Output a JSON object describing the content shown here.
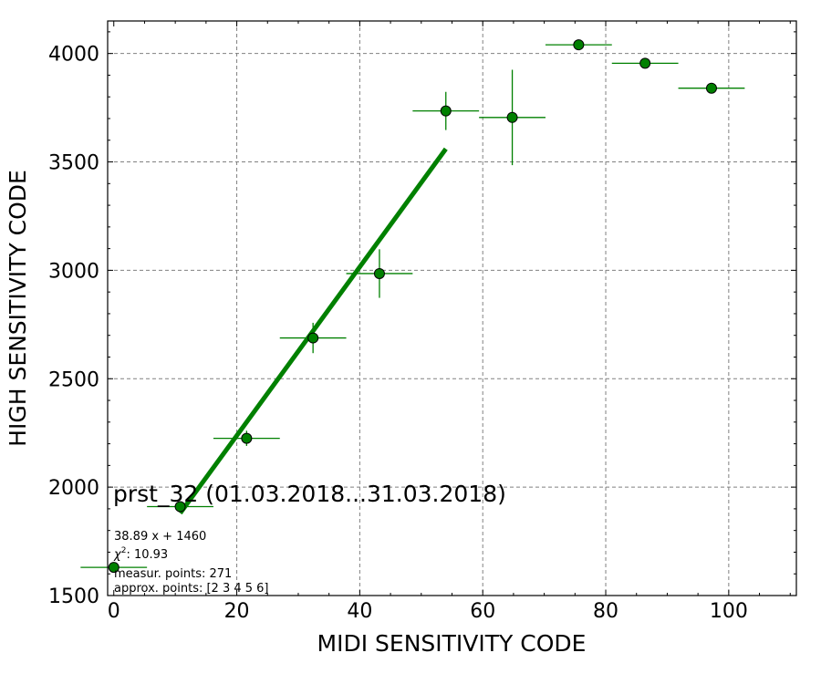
{
  "chart_data": {
    "type": "scatter",
    "title": "",
    "xlabel": "MIDI SENSITIVITY CODE",
    "ylabel": "HIGH SENSITIVITY CODE",
    "xlim": [
      -1,
      111
    ],
    "ylim": [
      1500,
      4150
    ],
    "grid": true,
    "xticks": [
      0,
      20,
      40,
      60,
      80,
      100
    ],
    "yticks": [
      1500,
      2000,
      2500,
      3000,
      3500,
      4000
    ],
    "xtick_labels": [
      "0",
      "20",
      "40",
      "60",
      "80",
      "100"
    ],
    "ytick_labels": [
      "1500",
      "2000",
      "2500",
      "3000",
      "3500",
      "4000"
    ],
    "point_color": "#008000",
    "fit_color": "#008000",
    "points": [
      {
        "x": 0.0,
        "y": 1630,
        "xerr": 5.4,
        "yerr": 8
      },
      {
        "x": 10.8,
        "y": 1910,
        "xerr": 5.4,
        "yerr": 18
      },
      {
        "x": 21.6,
        "y": 2225,
        "xerr": 5.4,
        "yerr": 35
      },
      {
        "x": 32.4,
        "y": 2688,
        "xerr": 5.4,
        "yerr": 70
      },
      {
        "x": 43.2,
        "y": 2985,
        "xerr": 5.4,
        "yerr": 112
      },
      {
        "x": 54.0,
        "y": 3735,
        "xerr": 5.4,
        "yerr": 88
      },
      {
        "x": 64.8,
        "y": 3705,
        "xerr": 5.4,
        "yerr": 220
      },
      {
        "x": 75.6,
        "y": 4040,
        "xerr": 5.4,
        "yerr": 0
      },
      {
        "x": 86.4,
        "y": 3955,
        "xerr": 5.4,
        "yerr": 0
      },
      {
        "x": 97.2,
        "y": 3840,
        "xerr": 5.4,
        "yerr": 0
      }
    ],
    "fit": {
      "slope": 38.89,
      "intercept": 1460,
      "x_start": 10.8,
      "x_end": 54.0
    },
    "annotations": {
      "title": "prst_32 (01.03.2018...31.03.2018)",
      "equation": "38.89 x + 1460",
      "chi2_prefix": "χ",
      "chi2_sup": "2",
      "chi2_value": ": 10.93",
      "measur_points": "measur. points: 271",
      "approx_points": "approx. points: [2 3 4 5 6]"
    }
  }
}
